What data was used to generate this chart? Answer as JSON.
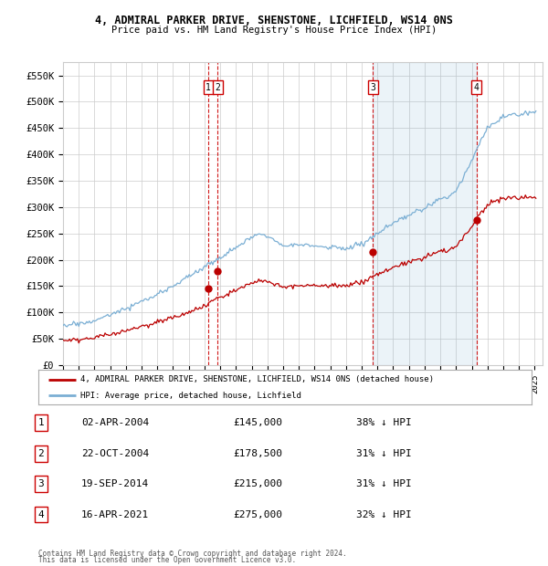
{
  "title1": "4, ADMIRAL PARKER DRIVE, SHENSTONE, LICHFIELD, WS14 0NS",
  "title2": "Price paid vs. HM Land Registry's House Price Index (HPI)",
  "ylim": [
    0,
    575000
  ],
  "yticks": [
    0,
    50000,
    100000,
    150000,
    200000,
    250000,
    300000,
    350000,
    400000,
    450000,
    500000,
    550000
  ],
  "ytick_labels": [
    "£0",
    "£50K",
    "£100K",
    "£150K",
    "£200K",
    "£250K",
    "£300K",
    "£350K",
    "£400K",
    "£450K",
    "£500K",
    "£550K"
  ],
  "hpi_color": "#7bafd4",
  "hpi_fill_color": "#ddeeff",
  "price_color": "#bb0000",
  "vline_color": "#cc0000",
  "bg_color": "#ffffff",
  "grid_color": "#cccccc",
  "transactions": [
    {
      "num": 1,
      "date": "02-APR-2004",
      "price": 145000,
      "pct": "38%",
      "x": 2004.25
    },
    {
      "num": 2,
      "date": "22-OCT-2004",
      "price": 178500,
      "pct": "31%",
      "x": 2004.83
    },
    {
      "num": 3,
      "date": "19-SEP-2014",
      "price": 215000,
      "pct": "31%",
      "x": 2014.72
    },
    {
      "num": 4,
      "date": "16-APR-2021",
      "price": 275000,
      "pct": "32%",
      "x": 2021.3
    }
  ],
  "legend_label_price": "4, ADMIRAL PARKER DRIVE, SHENSTONE, LICHFIELD, WS14 0NS (detached house)",
  "legend_label_hpi": "HPI: Average price, detached house, Lichfield",
  "footer1": "Contains HM Land Registry data © Crown copyright and database right 2024.",
  "footer2": "This data is licensed under the Open Government Licence v3.0.",
  "table_rows": [
    [
      "1",
      "02-APR-2004",
      "£145,000",
      "38% ↓ HPI"
    ],
    [
      "2",
      "22-OCT-2004",
      "£178,500",
      "31% ↓ HPI"
    ],
    [
      "3",
      "19-SEP-2014",
      "£215,000",
      "31% ↓ HPI"
    ],
    [
      "4",
      "16-APR-2021",
      "£275,000",
      "32% ↓ HPI"
    ]
  ],
  "xlim_start": 1995,
  "xlim_end": 2025.5
}
